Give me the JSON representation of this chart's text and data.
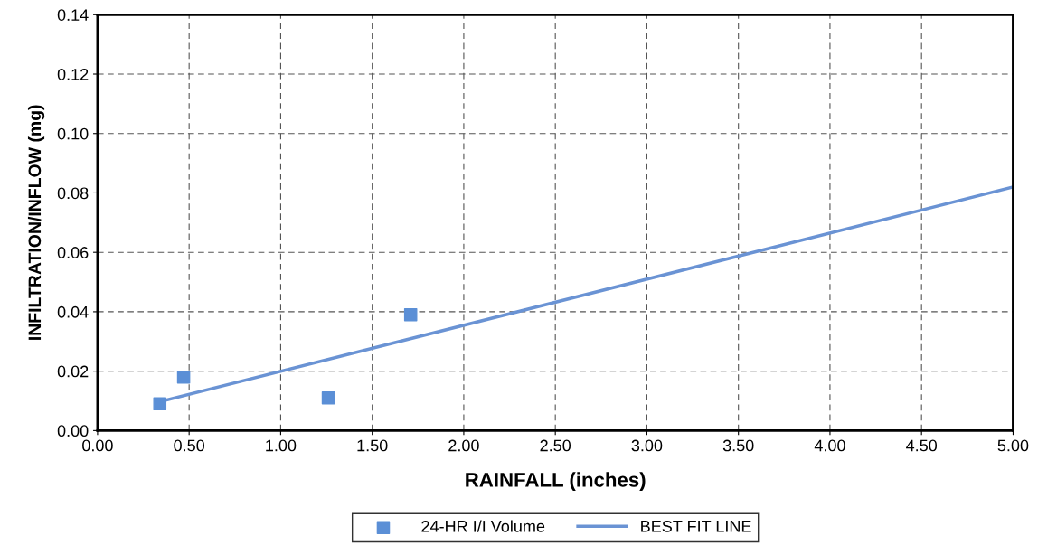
{
  "chart_data": {
    "type": "scatter",
    "xlabel": "RAINFALL (inches)",
    "ylabel": "INFILTRATION/INFLOW (mg)",
    "xlim": [
      0,
      5
    ],
    "ylim": [
      0,
      0.14
    ],
    "xticks": [
      {
        "value": 0,
        "label": "0.00"
      },
      {
        "value": 0.5,
        "label": "0.50"
      },
      {
        "value": 1,
        "label": "1.00"
      },
      {
        "value": 1.5,
        "label": "1.50"
      },
      {
        "value": 2,
        "label": "2.00"
      },
      {
        "value": 2.5,
        "label": "2.50"
      },
      {
        "value": 3,
        "label": "3.00"
      },
      {
        "value": 3.5,
        "label": "3.50"
      },
      {
        "value": 4,
        "label": "4.00"
      },
      {
        "value": 4.5,
        "label": "4.50"
      },
      {
        "value": 5,
        "label": "5.00"
      }
    ],
    "yticks": [
      {
        "value": 0,
        "label": "0.00"
      },
      {
        "value": 0.02,
        "label": "0.02"
      },
      {
        "value": 0.04,
        "label": "0.04"
      },
      {
        "value": 0.06,
        "label": "0.06"
      },
      {
        "value": 0.08,
        "label": "0.08"
      },
      {
        "value": 0.1,
        "label": "0.10"
      },
      {
        "value": 0.12,
        "label": "0.12"
      },
      {
        "value": 0.14,
        "label": "0.14"
      }
    ],
    "grid": true,
    "legend": "bottom",
    "series": [
      {
        "name": "24-HR I/I Volume",
        "marker": "square",
        "color": "#5b8fd6",
        "x": [
          0.34,
          0.47,
          1.26,
          1.71
        ],
        "values": [
          0.009,
          0.018,
          0.011,
          0.039
        ]
      },
      {
        "name": "BEST FIT LINE",
        "type": "line",
        "marker": "none",
        "color": "#6a93d4",
        "x": [
          0.34,
          5.0
        ],
        "values": [
          0.0097,
          0.082
        ]
      }
    ]
  }
}
